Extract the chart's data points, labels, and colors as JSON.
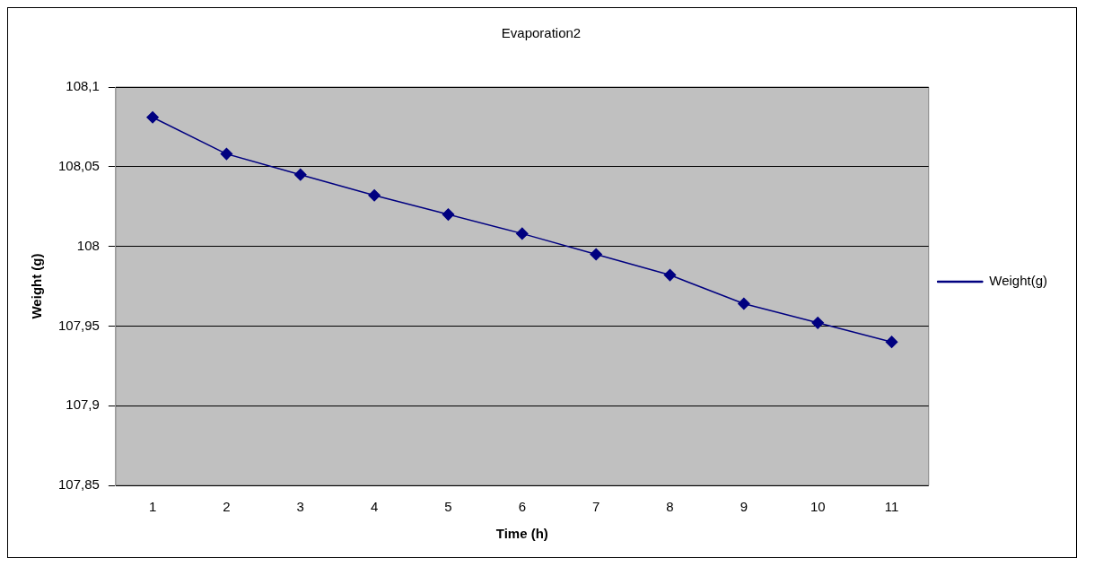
{
  "chart_data": {
    "type": "line",
    "title": "Evaporation2",
    "xlabel": "Time (h)",
    "ylabel": "Weight (g)",
    "categories": [
      "1",
      "2",
      "3",
      "4",
      "5",
      "6",
      "7",
      "8",
      "9",
      "10",
      "11"
    ],
    "series": [
      {
        "name": "Weight(g)",
        "color": "#000080",
        "values": [
          108.081,
          108.058,
          108.045,
          108.032,
          108.02,
          108.008,
          107.995,
          107.982,
          107.964,
          107.952,
          107.94
        ]
      }
    ],
    "ylim": [
      107.85,
      108.1
    ],
    "yticks": [
      {
        "value": 107.85,
        "label": "107,85"
      },
      {
        "value": 107.9,
        "label": "107,9"
      },
      {
        "value": 107.95,
        "label": "107,95"
      },
      {
        "value": 108,
        "label": "108"
      },
      {
        "value": 108.05,
        "label": "108,05"
      },
      {
        "value": 108.1,
        "label": "108,1"
      }
    ],
    "grid": "y",
    "legend": "right",
    "marker": "diamond",
    "line_style": "solid"
  }
}
